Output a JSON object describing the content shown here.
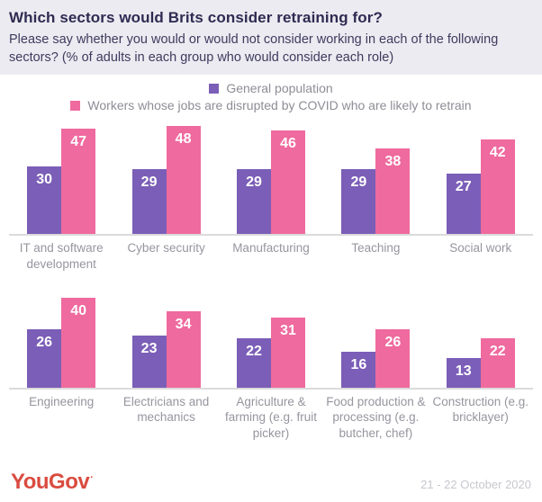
{
  "header": {
    "title": "Which sectors would Brits consider retraining for?",
    "subtitle": "Please say whether you would or would not consider working in each of the following sectors? (% of adults in each group who would consider each role)"
  },
  "legend": {
    "items": [
      {
        "label": "General population",
        "color": "#7B5EB7"
      },
      {
        "label": "Workers whose jobs are disrupted by COVID who are likely to retrain",
        "color": "#EF6A9E"
      }
    ]
  },
  "chart_data": {
    "type": "bar",
    "title": "Which sectors would Brits consider retraining for?",
    "ylabel": "% of adults in each group who would consider each role",
    "ylim": [
      0,
      54
    ],
    "grid": false,
    "legend_position": "top-center",
    "value_labels": "inside-top",
    "series_meta": [
      {
        "name": "General population",
        "color": "#7B5EB7"
      },
      {
        "name": "Workers whose jobs are disrupted by COVID who are likely to retrain",
        "color": "#EF6A9E"
      }
    ],
    "rows": [
      {
        "categories": [
          "IT and software development",
          "Cyber security",
          "Manufacturing",
          "Teaching",
          "Social work"
        ],
        "series": [
          {
            "name": "General population",
            "values": [
              30,
              29,
              29,
              29,
              27
            ]
          },
          {
            "name": "Workers whose jobs are disrupted by COVID who are likely to retrain",
            "values": [
              47,
              48,
              46,
              38,
              42
            ]
          }
        ]
      },
      {
        "categories": [
          "Engineering",
          "Electricians and mechanics",
          "Agriculture & farming (e.g. fruit picker)",
          "Food production & processing (e.g. butcher, chef)",
          "Construction (e.g. bricklayer)"
        ],
        "series": [
          {
            "name": "General population",
            "values": [
              26,
              23,
              22,
              16,
              13
            ]
          },
          {
            "name": "Workers whose jobs are disrupted by COVID who are likely to retrain",
            "values": [
              40,
              34,
              31,
              26,
              22
            ]
          }
        ]
      }
    ]
  },
  "footer": {
    "logo": "YouGov",
    "logo_mark": ".",
    "logo_color": "#DA4B3F",
    "date": "21 - 22 October 2020"
  }
}
